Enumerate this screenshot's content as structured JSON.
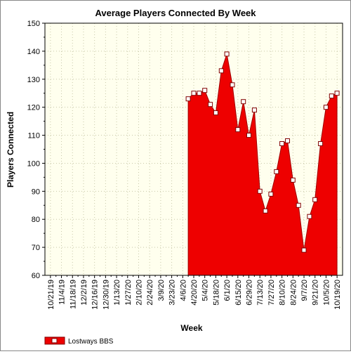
{
  "chart_data": {
    "type": "area",
    "title": "Average Players Connected By Week",
    "xlabel": "Week",
    "ylabel": "Players Connected",
    "ylim": [
      60,
      150
    ],
    "yticks": [
      60,
      70,
      80,
      90,
      100,
      110,
      120,
      130,
      140,
      150
    ],
    "x_tick_labels": [
      "10/21/19",
      "11/4/19",
      "11/18/19",
      "12/2/19",
      "12/16/19",
      "12/30/19",
      "1/13/20",
      "1/27/20",
      "2/10/20",
      "2/24/20",
      "3/9/20",
      "3/23/20",
      "4/6/20",
      "4/20/20",
      "5/4/20",
      "5/18/20",
      "6/1/20",
      "6/15/20",
      "6/29/20",
      "7/13/20",
      "7/27/20",
      "8/10/20",
      "8/24/20",
      "9/7/20",
      "9/21/20",
      "10/5/20",
      "10/19/20"
    ],
    "grid": true,
    "legend_position": "bottom-left",
    "colors": {
      "fill": "#ee0000",
      "marker": "#ffffff",
      "plot_bg": "#ffffee",
      "grid": "#c8c8a8"
    },
    "series": [
      {
        "name": "Lostways BBS",
        "points": [
          {
            "x": "4/13/20",
            "y": 123
          },
          {
            "x": "4/20/20",
            "y": 125
          },
          {
            "x": "4/27/20",
            "y": 125
          },
          {
            "x": "5/4/20",
            "y": 126
          },
          {
            "x": "5/11/20",
            "y": 121
          },
          {
            "x": "5/18/20",
            "y": 118
          },
          {
            "x": "5/25/20",
            "y": 133
          },
          {
            "x": "6/1/20",
            "y": 139
          },
          {
            "x": "6/8/20",
            "y": 128
          },
          {
            "x": "6/15/20",
            "y": 112
          },
          {
            "x": "6/22/20",
            "y": 122
          },
          {
            "x": "6/29/20",
            "y": 110
          },
          {
            "x": "7/6/20",
            "y": 119
          },
          {
            "x": "7/13/20",
            "y": 90
          },
          {
            "x": "7/20/20",
            "y": 83
          },
          {
            "x": "7/27/20",
            "y": 89
          },
          {
            "x": "8/3/20",
            "y": 97
          },
          {
            "x": "8/10/20",
            "y": 107
          },
          {
            "x": "8/17/20",
            "y": 108
          },
          {
            "x": "8/24/20",
            "y": 94
          },
          {
            "x": "8/31/20",
            "y": 85
          },
          {
            "x": "9/7/20",
            "y": 69
          },
          {
            "x": "9/14/20",
            "y": 81
          },
          {
            "x": "9/21/20",
            "y": 87
          },
          {
            "x": "9/28/20",
            "y": 107
          },
          {
            "x": "10/5/20",
            "y": 120
          },
          {
            "x": "10/12/20",
            "y": 124
          },
          {
            "x": "10/19/20",
            "y": 125
          }
        ]
      }
    ]
  }
}
